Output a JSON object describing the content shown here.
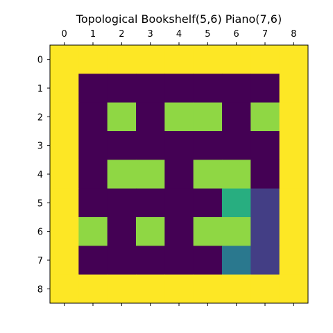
{
  "title": "Topological Bookshelf(5,6) Piano(7,6)",
  "chart_data": {
    "type": "heatmap",
    "title": "Topological Bookshelf(5,6) Piano(7,6)",
    "rows": 9,
    "cols": 9,
    "x_ticks": [
      "0",
      "1",
      "2",
      "3",
      "4",
      "5",
      "6",
      "7",
      "8"
    ],
    "y_ticks": [
      "0",
      "1",
      "2",
      "3",
      "4",
      "5",
      "6",
      "7",
      "8"
    ],
    "x_axis_position": "top",
    "grid": false,
    "palette": {
      "W": "#fde725",
      "F": "#440154",
      "B": "#8fd744",
      "S": "#28ae80",
      "T": "#2a788e",
      "P": "#433e85"
    },
    "legend_codes": {
      "W": "wall",
      "F": "floor",
      "B": "box",
      "S": "bookshelf-target",
      "T": "bookshelf",
      "P": "piano"
    },
    "grid_cells": [
      [
        "W",
        "W",
        "W",
        "W",
        "W",
        "W",
        "W",
        "W",
        "W"
      ],
      [
        "W",
        "F",
        "F",
        "F",
        "F",
        "F",
        "F",
        "F",
        "W"
      ],
      [
        "W",
        "F",
        "B",
        "F",
        "B",
        "B",
        "F",
        "B",
        "W"
      ],
      [
        "W",
        "F",
        "F",
        "F",
        "F",
        "F",
        "F",
        "F",
        "W"
      ],
      [
        "W",
        "F",
        "B",
        "B",
        "F",
        "B",
        "B",
        "F",
        "W"
      ],
      [
        "W",
        "F",
        "F",
        "F",
        "F",
        "F",
        "S",
        "P",
        "W"
      ],
      [
        "W",
        "B",
        "F",
        "B",
        "F",
        "B",
        "B",
        "P",
        "W"
      ],
      [
        "W",
        "F",
        "F",
        "F",
        "F",
        "F",
        "T",
        "P",
        "W"
      ],
      [
        "W",
        "W",
        "W",
        "W",
        "W",
        "W",
        "W",
        "W",
        "W"
      ]
    ]
  }
}
